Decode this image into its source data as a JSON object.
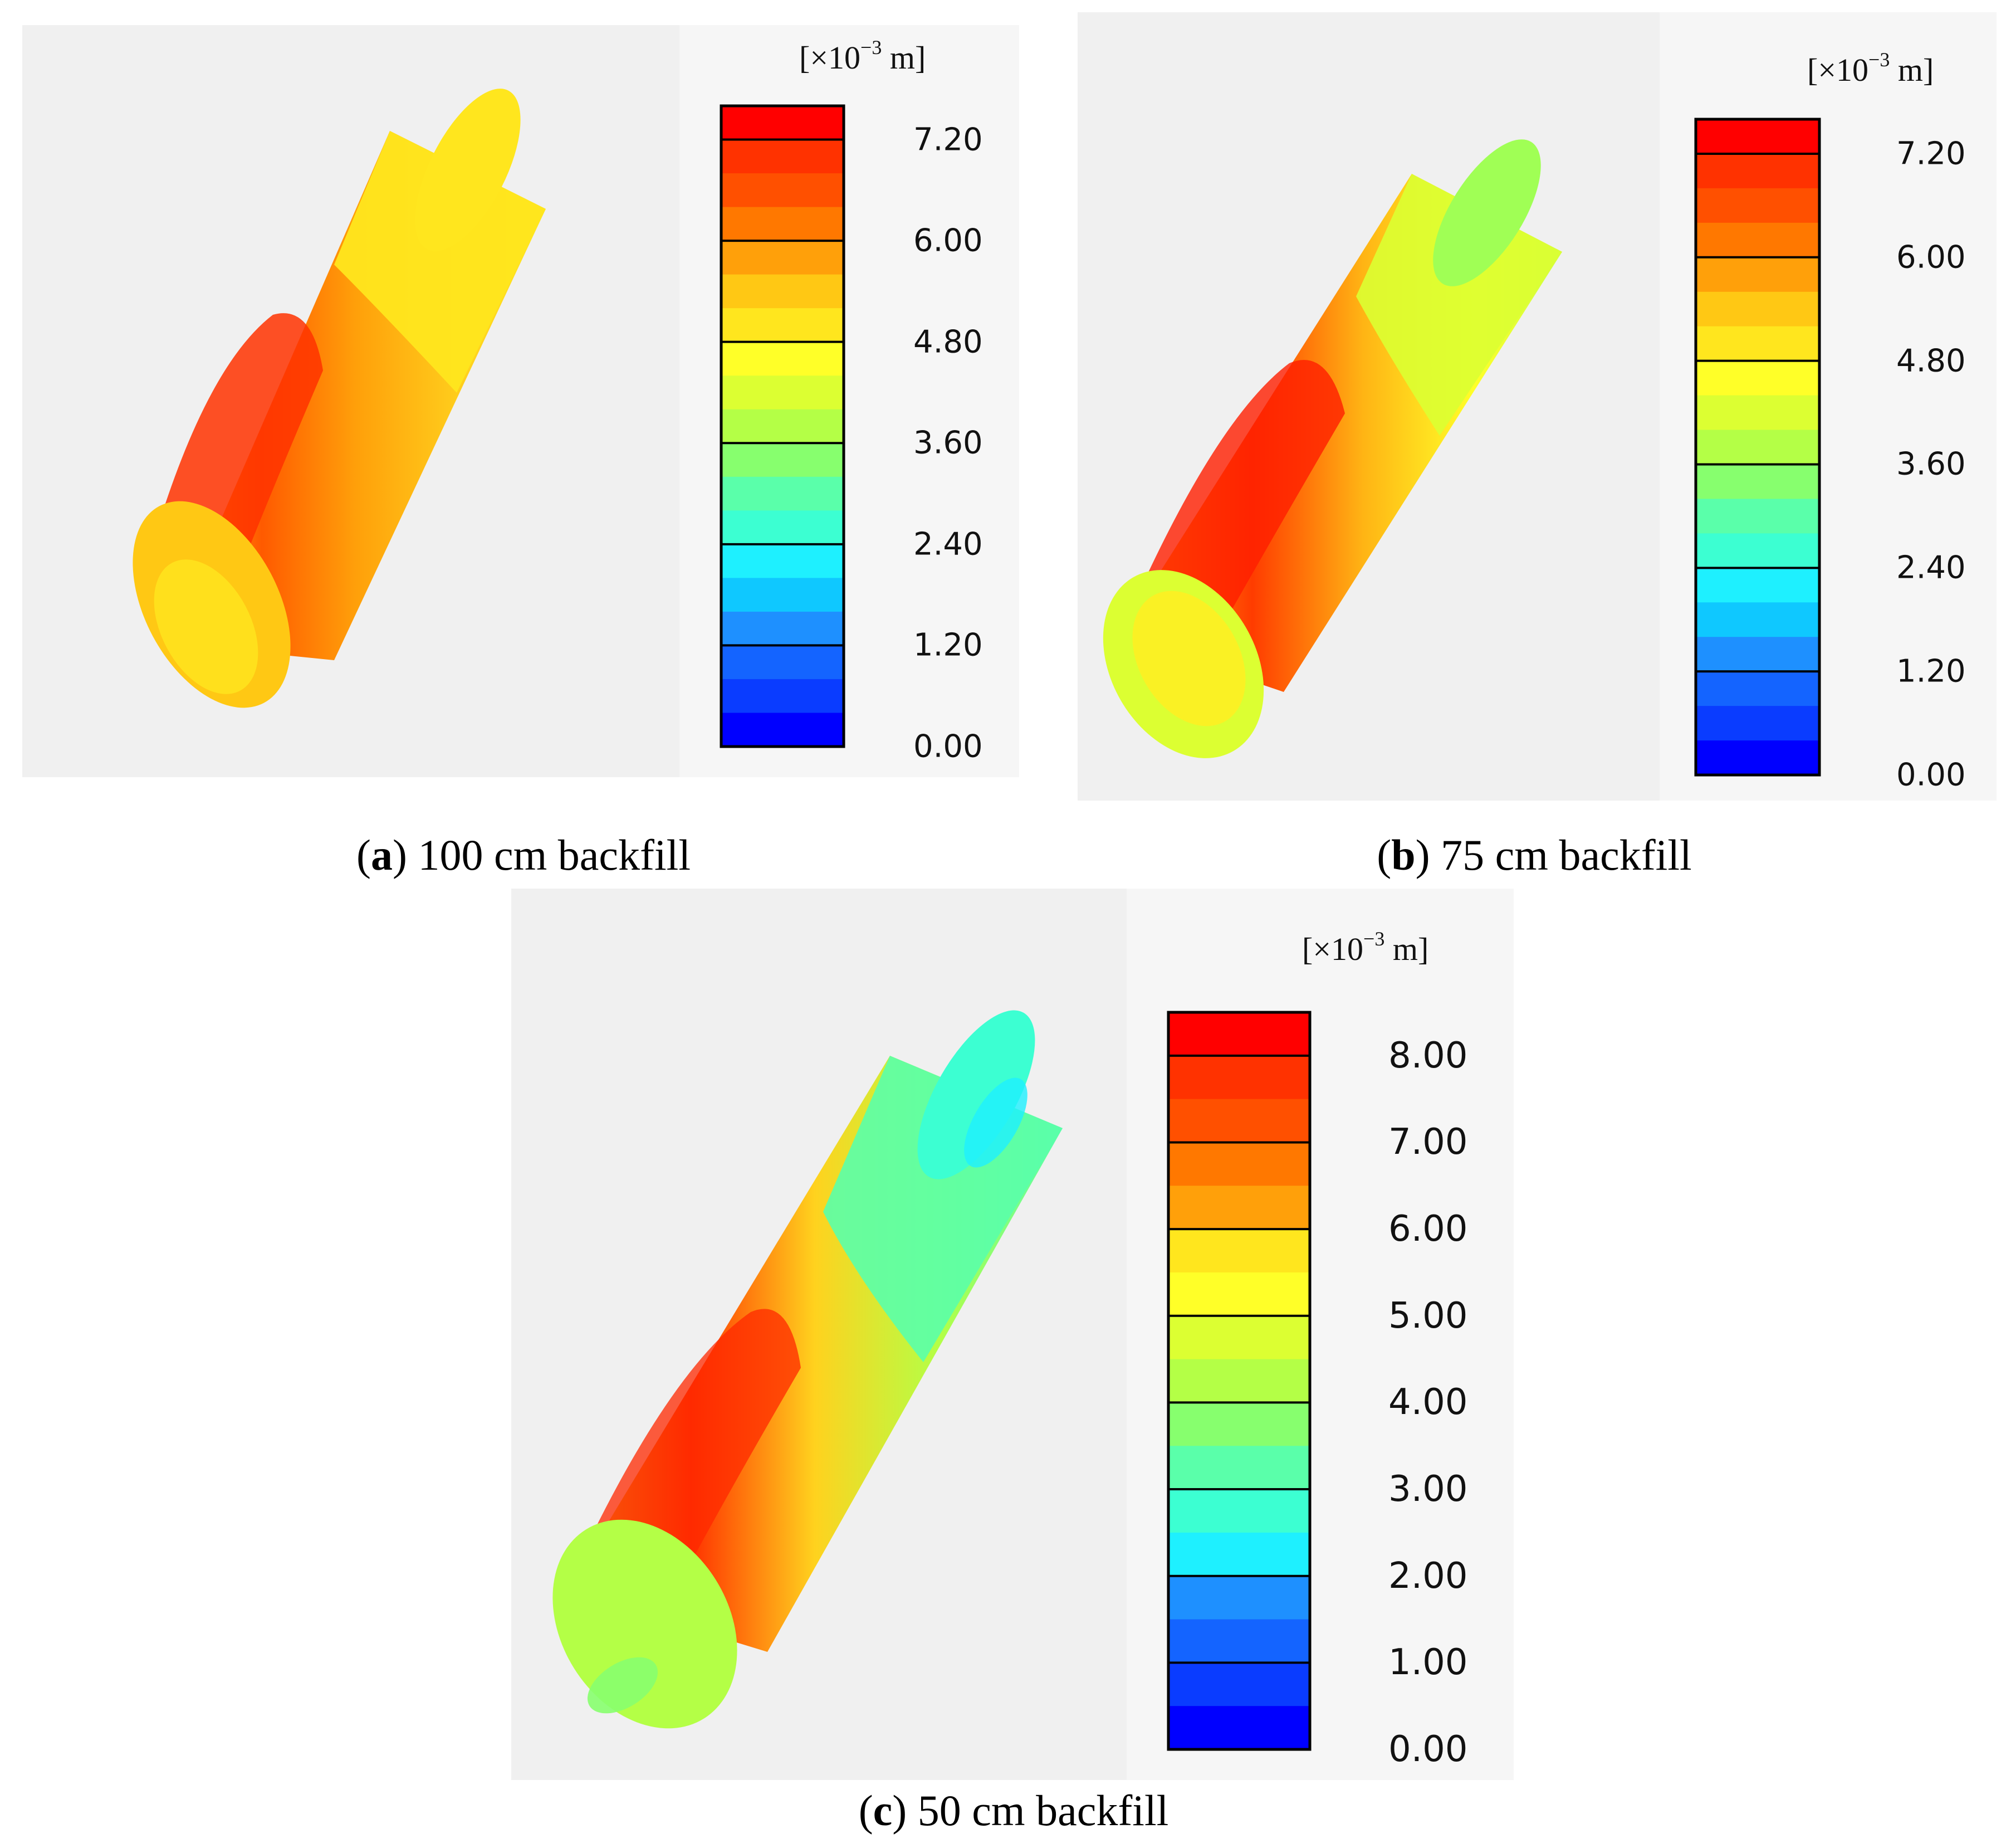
{
  "figure": {
    "panels": [
      {
        "id": "a",
        "letter": "a",
        "caption_text": " 100 cm backfill",
        "unit_base": "[×10",
        "unit_exp": "−3",
        "unit_tail": " m]",
        "legend_ticks": [
          "7.20",
          "6.00",
          "4.80",
          "3.60",
          "2.40",
          "1.20",
          "0.00"
        ],
        "tick_values": [
          7.2,
          6.0,
          4.8,
          3.6,
          2.4,
          1.2,
          0.0
        ],
        "legend_max": 7.6,
        "legend_min": 0.0,
        "band_count": 19
      },
      {
        "id": "b",
        "letter": "b",
        "caption_text": " 75 cm backfill",
        "unit_base": "[×10",
        "unit_exp": "−3",
        "unit_tail": " m]",
        "legend_ticks": [
          "7.20",
          "6.00",
          "4.80",
          "3.60",
          "2.40",
          "1.20",
          "0.00"
        ],
        "tick_values": [
          7.2,
          6.0,
          4.8,
          3.6,
          2.4,
          1.2,
          0.0
        ],
        "legend_max": 7.6,
        "legend_min": 0.0,
        "band_count": 19
      },
      {
        "id": "c",
        "letter": "c",
        "caption_text": " 50 cm backfill",
        "unit_base": "[×10",
        "unit_exp": "−3",
        "unit_tail": " m]",
        "legend_ticks": [
          "8.00",
          "7.00",
          "6.00",
          "5.00",
          "4.00",
          "3.00",
          "2.00",
          "1.00",
          "0.00"
        ],
        "tick_values": [
          8.0,
          7.0,
          6.0,
          5.0,
          4.0,
          3.0,
          2.0,
          1.0,
          0.0
        ],
        "legend_max": 8.5,
        "legend_min": 0.0,
        "band_count": 17
      }
    ]
  },
  "colors": {
    "scale": [
      "#0000ff",
      "#0a3cff",
      "#1464ff",
      "#1e90ff",
      "#0fc8ff",
      "#1ef0ff",
      "#3cffd2",
      "#5affaa",
      "#87ff6e",
      "#b4ff46",
      "#dcff32",
      "#ffff28",
      "#ffe61e",
      "#ffc814",
      "#ffa00a",
      "#ff7800",
      "#ff5000",
      "#ff3200",
      "#ff0000"
    ],
    "background": "#f0f0f0",
    "legend_panel": "#f5f5f5"
  }
}
